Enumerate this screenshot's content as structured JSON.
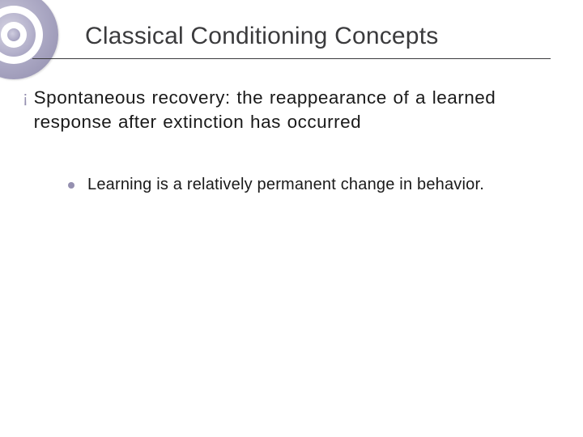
{
  "slide": {
    "title": "Classical Conditioning Concepts",
    "bullets": [
      {
        "level": 1,
        "marker": "¡",
        "text": "Spontaneous recovery: the reappearance of a learned response after extinction has occurred"
      },
      {
        "level": 2,
        "marker": "disc",
        "text": "Learning is a relatively permanent change in behavior."
      }
    ]
  },
  "style": {
    "background_color": "#ffffff",
    "title_color": "#3b3b3d",
    "title_fontsize": 30,
    "body_color": "#1a1a1a",
    "body_fontsize_l1": 22.5,
    "body_fontsize_l2": 20,
    "bullet_marker_color": "#9590b0",
    "rule_color": "#3b3b3d",
    "decor_circle_fill": "#a9a6c2",
    "font_family": "Verdana"
  }
}
